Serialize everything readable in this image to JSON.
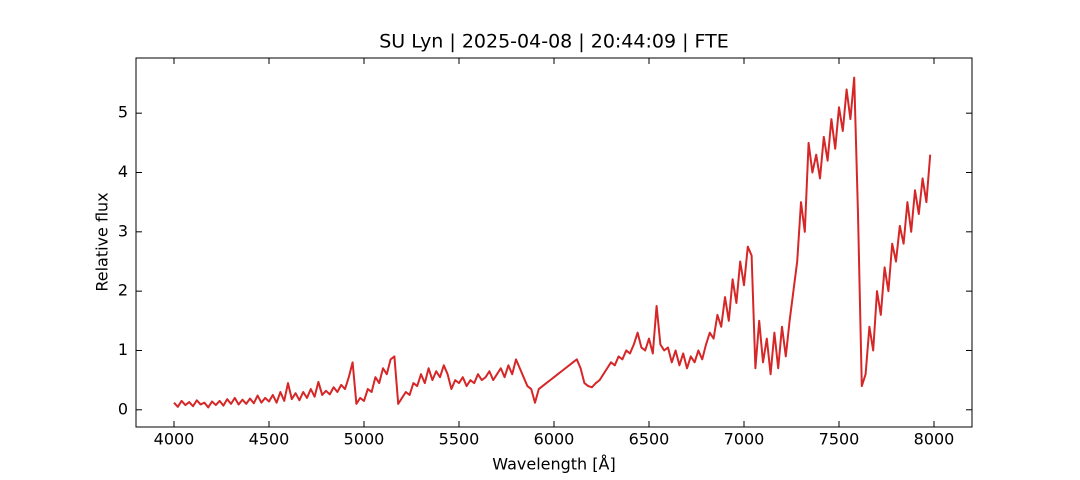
{
  "chart_data": {
    "type": "line",
    "title": "SU Lyn | 2025-04-08 | 20:44:09 | FTE",
    "x_label": "Wavelength [Å]",
    "y_label": "Relative flux",
    "color": "#d62728",
    "xlim": [
      3800,
      8200
    ],
    "ylim": [
      -0.29,
      5.93
    ],
    "xticks": [
      4000,
      4500,
      5000,
      5500,
      6000,
      6500,
      7000,
      7500,
      8000
    ],
    "yticks": [
      0,
      1,
      2,
      3,
      4,
      5
    ],
    "x": [
      4000,
      4020,
      4040,
      4060,
      4080,
      4100,
      4120,
      4140,
      4160,
      4180,
      4200,
      4220,
      4240,
      4260,
      4280,
      4300,
      4320,
      4340,
      4360,
      4380,
      4400,
      4420,
      4440,
      4460,
      4480,
      4500,
      4520,
      4540,
      4560,
      4580,
      4600,
      4620,
      4640,
      4660,
      4680,
      4700,
      4720,
      4740,
      4760,
      4780,
      4800,
      4820,
      4840,
      4860,
      4880,
      4900,
      4920,
      4940,
      4960,
      4980,
      5000,
      5020,
      5040,
      5060,
      5080,
      5100,
      5120,
      5140,
      5160,
      5180,
      5200,
      5220,
      5240,
      5260,
      5280,
      5300,
      5320,
      5340,
      5360,
      5380,
      5400,
      5420,
      5440,
      5460,
      5480,
      5500,
      5520,
      5540,
      5560,
      5580,
      5600,
      5620,
      5640,
      5660,
      5680,
      5700,
      5720,
      5740,
      5760,
      5780,
      5800,
      5820,
      5840,
      5860,
      5880,
      5900,
      5920,
      5940,
      5960,
      5980,
      6000,
      6020,
      6040,
      6060,
      6080,
      6100,
      6120,
      6140,
      6160,
      6180,
      6200,
      6220,
      6240,
      6260,
      6280,
      6300,
      6320,
      6340,
      6360,
      6380,
      6400,
      6420,
      6440,
      6460,
      6480,
      6500,
      6520,
      6540,
      6560,
      6580,
      6600,
      6620,
      6640,
      6660,
      6680,
      6700,
      6720,
      6740,
      6760,
      6780,
      6800,
      6820,
      6840,
      6860,
      6880,
      6900,
      6920,
      6940,
      6960,
      6980,
      7000,
      7020,
      7040,
      7060,
      7080,
      7100,
      7120,
      7140,
      7160,
      7180,
      7200,
      7220,
      7240,
      7260,
      7280,
      7300,
      7320,
      7340,
      7360,
      7380,
      7400,
      7420,
      7440,
      7460,
      7480,
      7500,
      7520,
      7540,
      7560,
      7580,
      7600,
      7620,
      7640,
      7660,
      7680,
      7700,
      7720,
      7740,
      7760,
      7780,
      7800,
      7820,
      7840,
      7860,
      7880,
      7900,
      7920,
      7940,
      7960,
      7980
    ],
    "values": [
      0.12,
      0.05,
      0.15,
      0.08,
      0.13,
      0.06,
      0.16,
      0.09,
      0.12,
      0.04,
      0.14,
      0.08,
      0.15,
      0.07,
      0.18,
      0.1,
      0.2,
      0.09,
      0.17,
      0.1,
      0.19,
      0.11,
      0.24,
      0.12,
      0.2,
      0.14,
      0.25,
      0.12,
      0.3,
      0.15,
      0.45,
      0.18,
      0.28,
      0.16,
      0.3,
      0.2,
      0.35,
      0.22,
      0.47,
      0.25,
      0.32,
      0.26,
      0.38,
      0.3,
      0.42,
      0.35,
      0.55,
      0.8,
      0.1,
      0.2,
      0.15,
      0.35,
      0.3,
      0.55,
      0.45,
      0.7,
      0.6,
      0.85,
      0.9,
      0.1,
      0.2,
      0.3,
      0.25,
      0.45,
      0.4,
      0.6,
      0.45,
      0.7,
      0.5,
      0.65,
      0.55,
      0.75,
      0.6,
      0.35,
      0.5,
      0.45,
      0.55,
      0.4,
      0.5,
      0.45,
      0.6,
      0.5,
      0.55,
      0.65,
      0.5,
      0.6,
      0.7,
      0.55,
      0.75,
      0.6,
      0.85,
      0.7,
      0.55,
      0.4,
      0.35,
      0.12,
      0.35,
      0.4,
      0.45,
      0.5,
      0.55,
      0.6,
      0.65,
      0.7,
      0.75,
      0.8,
      0.85,
      0.7,
      0.45,
      0.4,
      0.38,
      0.45,
      0.5,
      0.6,
      0.7,
      0.8,
      0.75,
      0.9,
      0.85,
      1.0,
      0.95,
      1.1,
      1.3,
      1.05,
      1.0,
      1.2,
      0.95,
      1.75,
      1.1,
      1.0,
      1.05,
      0.8,
      1.0,
      0.75,
      0.95,
      0.7,
      0.9,
      0.8,
      1.0,
      0.85,
      1.1,
      1.3,
      1.2,
      1.6,
      1.4,
      1.9,
      1.5,
      2.2,
      1.8,
      2.5,
      2.1,
      2.75,
      2.6,
      0.7,
      1.5,
      0.8,
      1.2,
      0.6,
      1.3,
      0.7,
      1.4,
      0.9,
      1.5,
      2.0,
      2.5,
      3.5,
      3.0,
      4.5,
      4.0,
      4.3,
      3.9,
      4.6,
      4.2,
      4.9,
      4.4,
      5.1,
      4.7,
      5.4,
      4.9,
      5.6,
      3.3,
      0.4,
      0.6,
      1.4,
      1.0,
      2.0,
      1.6,
      2.4,
      2.0,
      2.8,
      2.5,
      3.1,
      2.8,
      3.5,
      3.0,
      3.7,
      3.3,
      3.9,
      3.5,
      4.3
    ]
  }
}
